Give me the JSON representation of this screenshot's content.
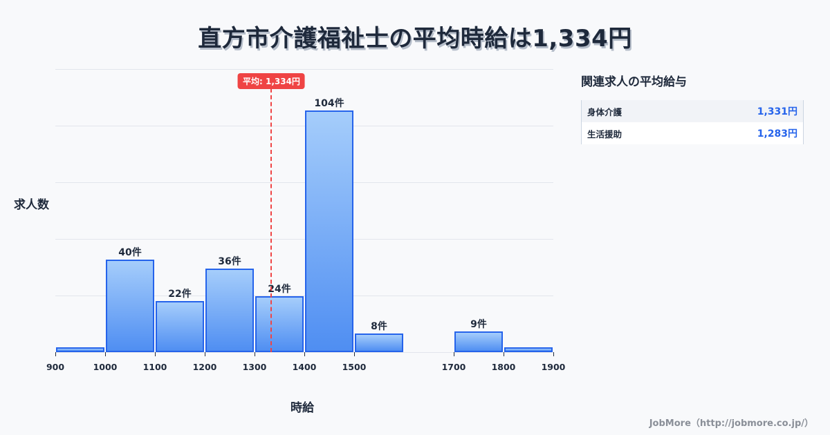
{
  "header": {
    "title": "直方市介護福祉士の平均時給は1,334円"
  },
  "chart_data": {
    "type": "bar",
    "title": "直方市介護福祉士の平均時給は1,334円",
    "xlabel": "時給",
    "ylabel": "求人数",
    "bins": [
      {
        "from": 900,
        "to": 1000,
        "count": 2,
        "label": ""
      },
      {
        "from": 1000,
        "to": 1100,
        "count": 40,
        "label": "40件"
      },
      {
        "from": 1100,
        "to": 1200,
        "count": 22,
        "label": "22件"
      },
      {
        "from": 1200,
        "to": 1300,
        "count": 36,
        "label": "36件"
      },
      {
        "from": 1300,
        "to": 1400,
        "count": 24,
        "label": "24件"
      },
      {
        "from": 1400,
        "to": 1500,
        "count": 104,
        "label": "104件"
      },
      {
        "from": 1500,
        "to": 1600,
        "count": 8,
        "label": "8件"
      },
      {
        "from": 1600,
        "to": 1700,
        "count": 0,
        "label": ""
      },
      {
        "from": 1700,
        "to": 1800,
        "count": 9,
        "label": "9件"
      },
      {
        "from": 1800,
        "to": 1900,
        "count": 2,
        "label": ""
      }
    ],
    "x_ticks": [
      900,
      1000,
      1100,
      1200,
      1300,
      1400,
      1500,
      1700,
      1800,
      1900
    ],
    "xlim": [
      900,
      1900
    ],
    "ylim": [
      0,
      122
    ],
    "grid": true,
    "mean": {
      "value": 1334,
      "label": "平均: 1,334円",
      "color": "#ef4444"
    },
    "bar_color": "#4f8ef2",
    "bar_border": "#2563eb"
  },
  "axis": {
    "ylabel": "求人数",
    "xlabel": "時給"
  },
  "sidebar": {
    "title": "関連求人の平均給与",
    "rows": [
      {
        "name": "身体介護",
        "value": "1,331円"
      },
      {
        "name": "生活援助",
        "value": "1,283円"
      }
    ]
  },
  "footer": {
    "credit": "JobMore（http://jobmore.co.jp/）"
  }
}
